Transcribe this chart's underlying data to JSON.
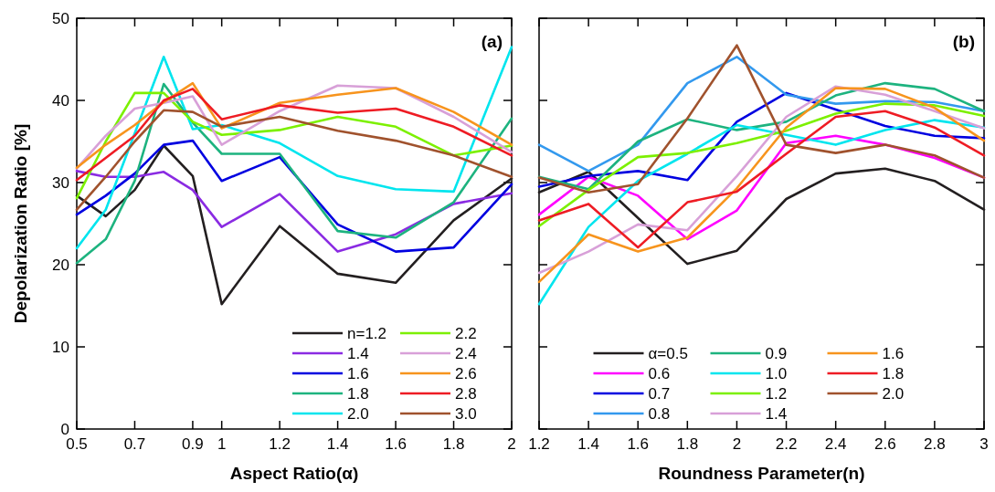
{
  "chart_data": [
    {
      "type": "line",
      "xlabel": "Aspect Ratio(α)",
      "ylabel": "Depolarization Ratio [%]",
      "annotations": [
        "(a)"
      ],
      "legend": "bottom right",
      "x": [
        0.5,
        0.6,
        0.7,
        0.8,
        0.9,
        1.0,
        1.2,
        1.4,
        1.6,
        1.8,
        2.0
      ],
      "xlim": [
        0.5,
        2
      ],
      "xticks": [
        0.5,
        0.7,
        0.9,
        1,
        1.2,
        1.4,
        1.6,
        1.8,
        2
      ],
      "ylim": [
        0,
        50
      ],
      "yticks": [
        0,
        10,
        20,
        30,
        40,
        50
      ],
      "series": [
        {
          "name": "n=1.2",
          "color": "#231f20",
          "values": [
            28.4,
            25.9,
            29.1,
            34.5,
            30.8,
            15.2,
            24.7,
            18.9,
            17.8,
            25.4,
            30.5
          ]
        },
        {
          "name": "1.4",
          "color": "#8a2be2",
          "values": [
            31.4,
            30.7,
            30.7,
            31.3,
            29.1,
            24.6,
            28.6,
            21.6,
            23.7,
            27.4,
            28.7
          ]
        },
        {
          "name": "1.6",
          "color": "#0000e0",
          "values": [
            26.1,
            28.4,
            31.1,
            34.6,
            35.1,
            30.2,
            33.1,
            24.9,
            21.6,
            22.1,
            29.8
          ]
        },
        {
          "name": "1.8",
          "color": "#1db37f",
          "values": [
            20.2,
            23.1,
            30.2,
            42.0,
            37.3,
            33.5,
            33.5,
            24.1,
            23.3,
            27.6,
            37.8
          ]
        },
        {
          "name": "2.0",
          "color": "#00e5ee",
          "values": [
            22.0,
            26.7,
            36.0,
            45.3,
            36.5,
            37.0,
            34.8,
            30.8,
            29.2,
            28.9,
            46.5
          ]
        },
        {
          "name": "2.2",
          "color": "#7cf000",
          "values": [
            28.1,
            35.0,
            40.9,
            40.9,
            37.4,
            35.8,
            36.4,
            38.0,
            36.8,
            33.3,
            34.5
          ]
        },
        {
          "name": "2.4",
          "color": "#d8a0d8",
          "values": [
            31.7,
            35.7,
            39.0,
            39.7,
            40.5,
            34.6,
            38.7,
            41.8,
            41.5,
            38.0,
            33.7
          ]
        },
        {
          "name": "2.6",
          "color": "#f7941d",
          "values": [
            31.8,
            34.6,
            37.0,
            39.8,
            42.1,
            36.6,
            39.7,
            40.7,
            41.5,
            38.6,
            34.6
          ]
        },
        {
          "name": "2.8",
          "color": "#ee1c24",
          "values": [
            30.3,
            33.0,
            35.7,
            40.0,
            41.4,
            37.7,
            39.4,
            38.5,
            39.0,
            36.8,
            33.3
          ]
        },
        {
          "name": "3.0",
          "color": "#a0522d",
          "values": [
            26.7,
            30.7,
            35.0,
            38.8,
            38.6,
            36.8,
            38.0,
            36.3,
            35.1,
            33.3,
            30.7
          ]
        }
      ]
    },
    {
      "type": "line",
      "xlabel": "Roundness Parameter(n)",
      "annotations": [
        "(b)"
      ],
      "legend": "bottom",
      "tick_labels": "x",
      "x": [
        1.2,
        1.4,
        1.6,
        1.8,
        2.0,
        2.2,
        2.4,
        2.6,
        2.8,
        3.0
      ],
      "xlim": [
        1.2,
        3
      ],
      "xticks": [
        1.2,
        1.4,
        1.6,
        1.8,
        2,
        2.2,
        2.4,
        2.6,
        2.8,
        3
      ],
      "ylim": [
        0,
        50
      ],
      "yticks": [
        0,
        10,
        20,
        30,
        40,
        50
      ],
      "series": [
        {
          "name": "α=0.5",
          "color": "#231f20",
          "values": [
            28.8,
            31.3,
            25.7,
            20.1,
            21.7,
            28.0,
            31.1,
            31.7,
            30.2,
            26.7
          ]
        },
        {
          "name": "0.6",
          "color": "#ff00ff",
          "values": [
            26.1,
            30.7,
            28.4,
            23.1,
            26.6,
            34.8,
            35.7,
            34.6,
            33.0,
            30.6
          ]
        },
        {
          "name": "0.7",
          "color": "#0000e0",
          "values": [
            29.5,
            30.8,
            31.4,
            30.3,
            37.4,
            40.9,
            38.9,
            36.9,
            35.7,
            35.4
          ]
        },
        {
          "name": "0.8",
          "color": "#3399ee",
          "values": [
            34.6,
            31.4,
            34.6,
            42.1,
            45.3,
            40.7,
            39.6,
            39.9,
            39.8,
            38.7
          ]
        },
        {
          "name": "0.9",
          "color": "#1db37f",
          "values": [
            30.7,
            29.2,
            35.0,
            37.7,
            36.4,
            37.4,
            40.6,
            42.1,
            41.4,
            38.7
          ]
        },
        {
          "name": "1.0",
          "color": "#00e5ee",
          "values": [
            15.2,
            24.6,
            30.2,
            33.5,
            37.0,
            35.8,
            34.6,
            36.4,
            37.6,
            36.7
          ]
        },
        {
          "name": "1.2",
          "color": "#7cf000",
          "values": [
            24.7,
            29.1,
            33.1,
            33.6,
            34.8,
            36.3,
            38.4,
            39.6,
            39.4,
            38.1
          ]
        },
        {
          "name": "1.4",
          "color": "#d8a0d8",
          "values": [
            19.0,
            21.6,
            24.9,
            24.2,
            30.8,
            38.0,
            41.7,
            40.7,
            38.7,
            36.6
          ]
        },
        {
          "name": "1.6",
          "color": "#f7941d",
          "values": [
            17.9,
            23.7,
            21.6,
            23.3,
            29.3,
            36.7,
            41.5,
            41.4,
            39.1,
            35.1
          ]
        },
        {
          "name": "1.8",
          "color": "#ee1c24",
          "values": [
            25.4,
            27.4,
            22.1,
            27.6,
            28.9,
            33.5,
            38.0,
            38.7,
            36.7,
            33.3
          ]
        },
        {
          "name": "2.0",
          "color": "#a0522d",
          "values": [
            30.6,
            28.8,
            29.8,
            37.8,
            46.7,
            34.6,
            33.6,
            34.6,
            33.3,
            30.6
          ]
        }
      ]
    }
  ]
}
